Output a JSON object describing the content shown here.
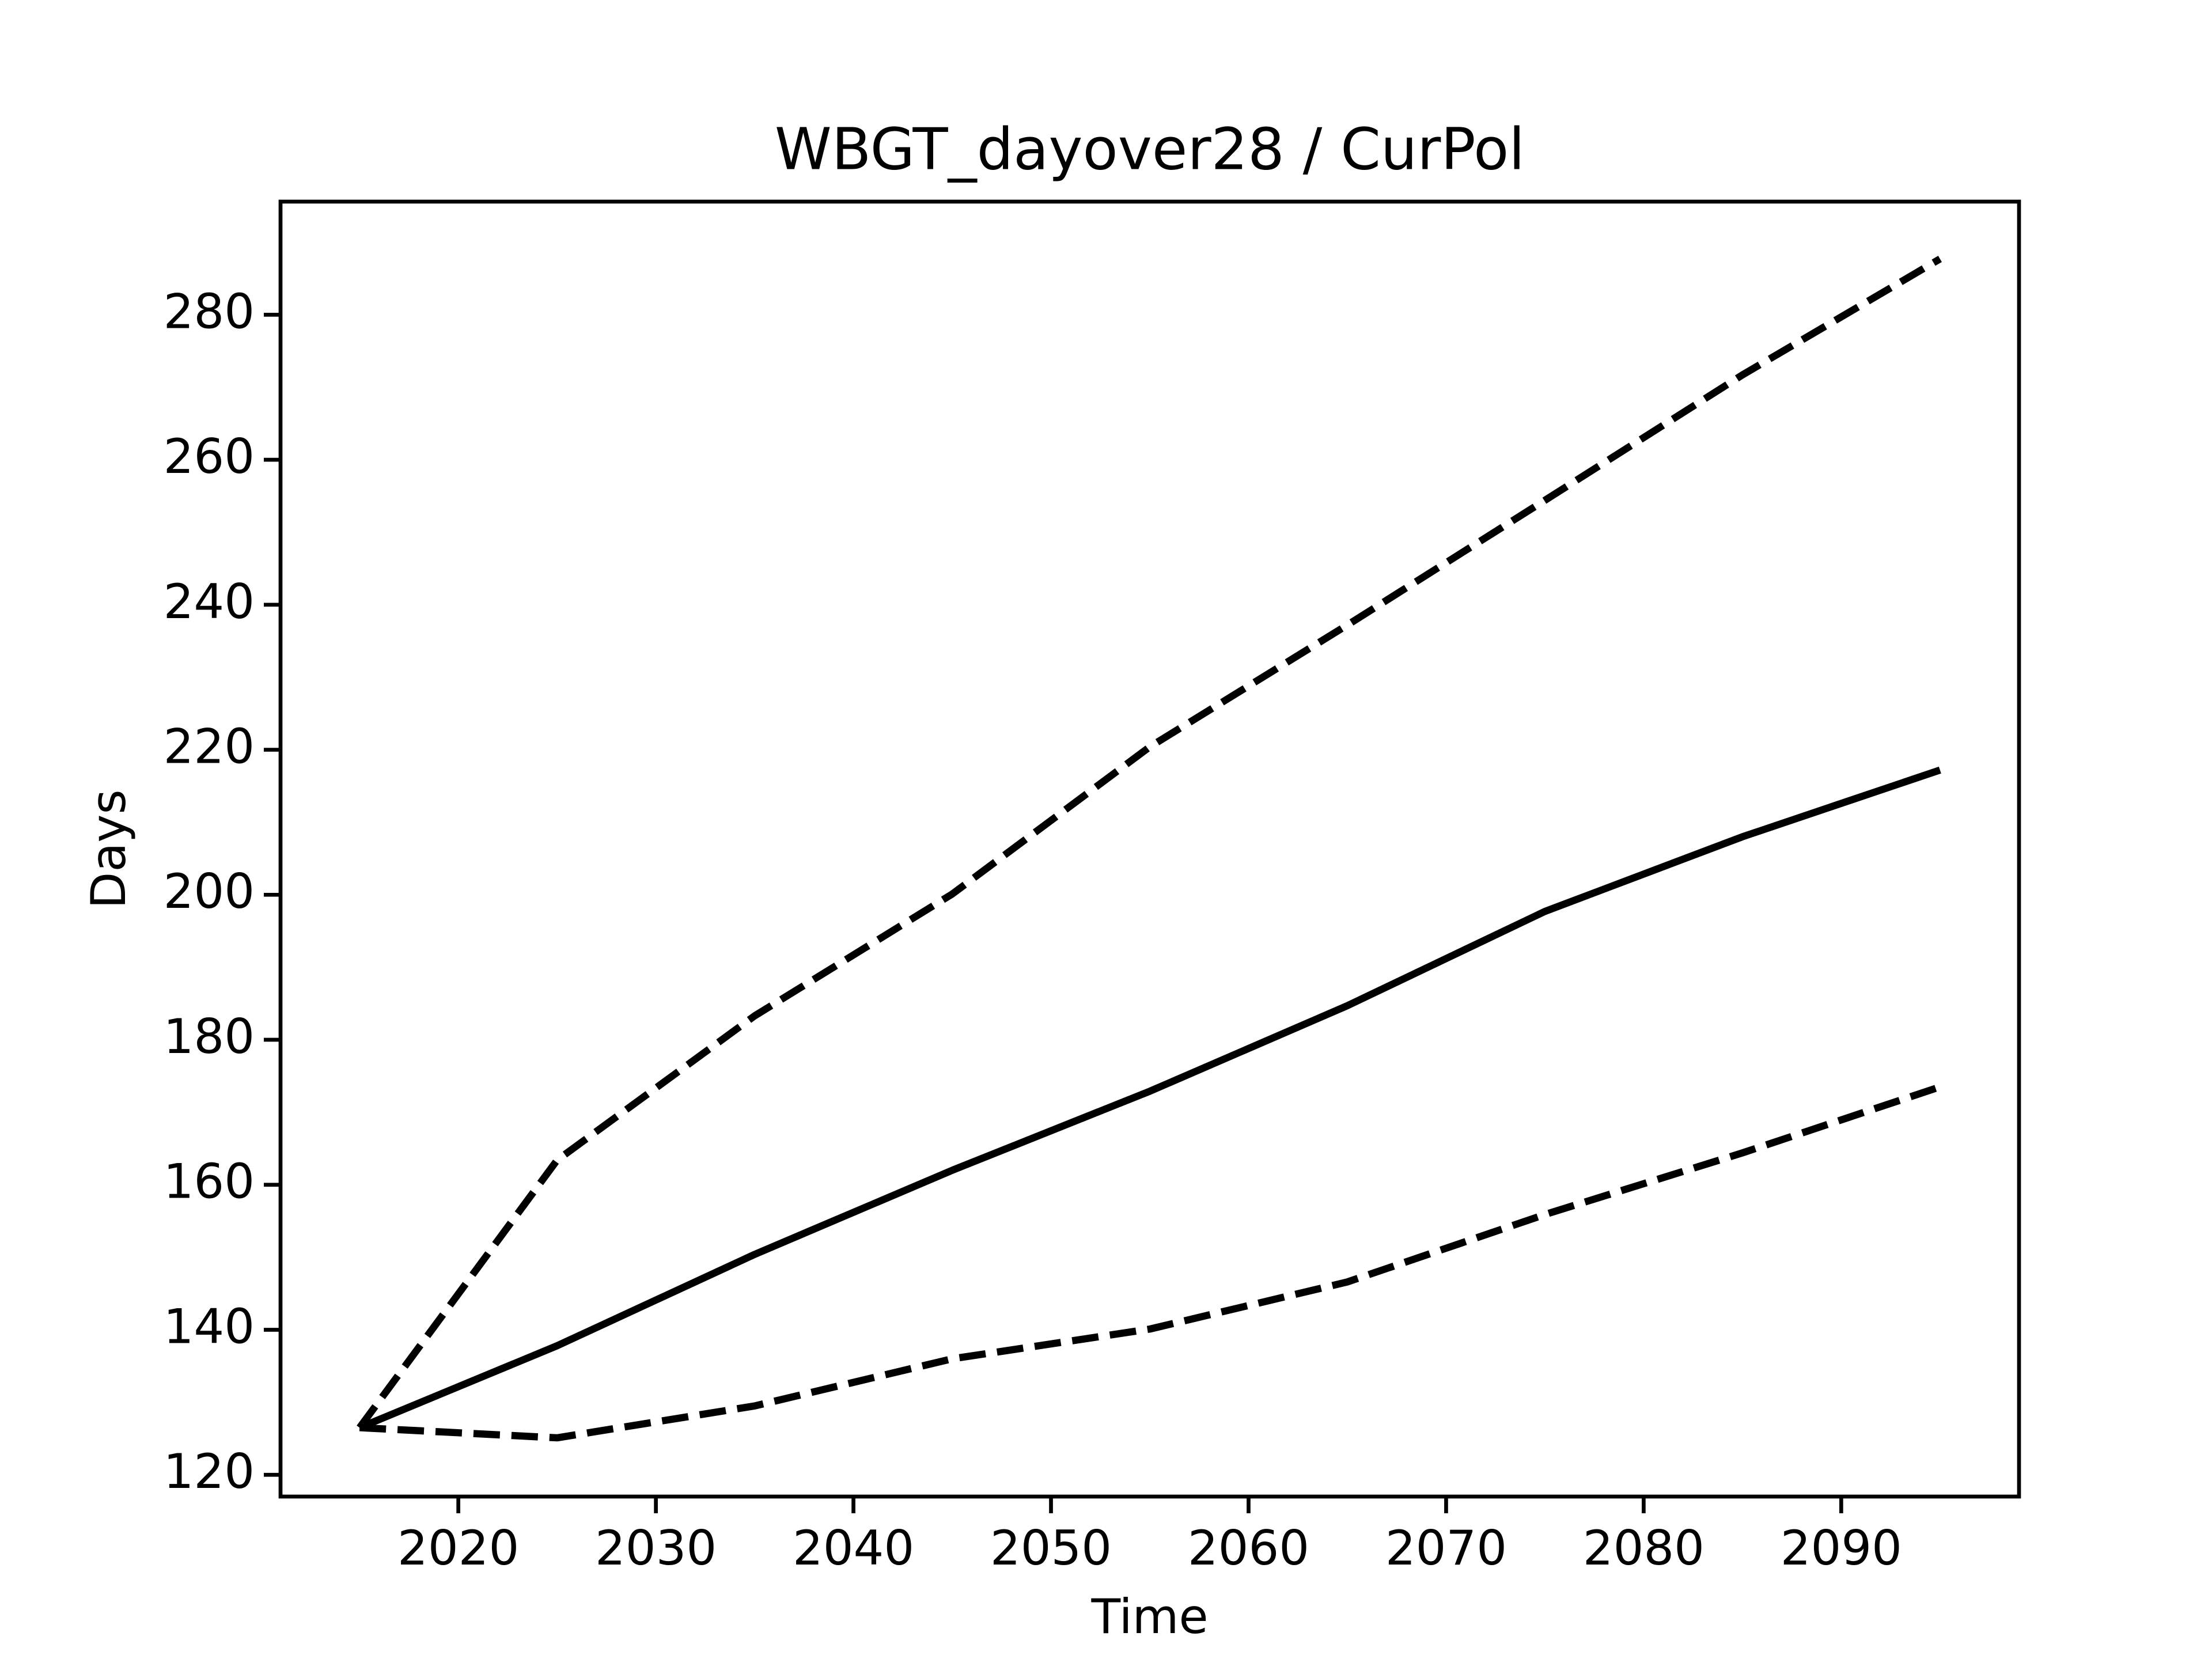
{
  "chart_data": {
    "type": "line",
    "title": "WBGT_dayover28 / CurPol",
    "xlabel": "Time",
    "ylabel": "Days",
    "x": [
      2015,
      2025,
      2035,
      2045,
      2055,
      2065,
      2075,
      2085,
      2095
    ],
    "series": [
      {
        "color": "#000000",
        "line_style": "solid",
        "values": [
          126.5,
          137.8,
          150.4,
          162.0,
          172.9,
          184.7,
          197.7,
          208.0,
          217.2
        ]
      },
      {
        "color": "#000000",
        "line_style": "dashed",
        "values": [
          126.5,
          163.4,
          183.3,
          200.1,
          220.4,
          237.2,
          254.4,
          271.7,
          287.7
        ]
      },
      {
        "color": "#000000",
        "line_style": "dashed",
        "values": [
          126.5,
          125.1,
          129.5,
          136.0,
          140.1,
          146.6,
          155.9,
          164.4,
          173.5
        ]
      }
    ],
    "xlim": [
      2011.0,
      2099.0
    ],
    "xticks": [
      2020,
      2030,
      2040,
      2050,
      2060,
      2070,
      2080,
      2090
    ],
    "ylim": [
      117.0,
      295.6
    ],
    "yticks": [
      120,
      140,
      160,
      180,
      200,
      220,
      240,
      260,
      280
    ],
    "grid": false
  }
}
